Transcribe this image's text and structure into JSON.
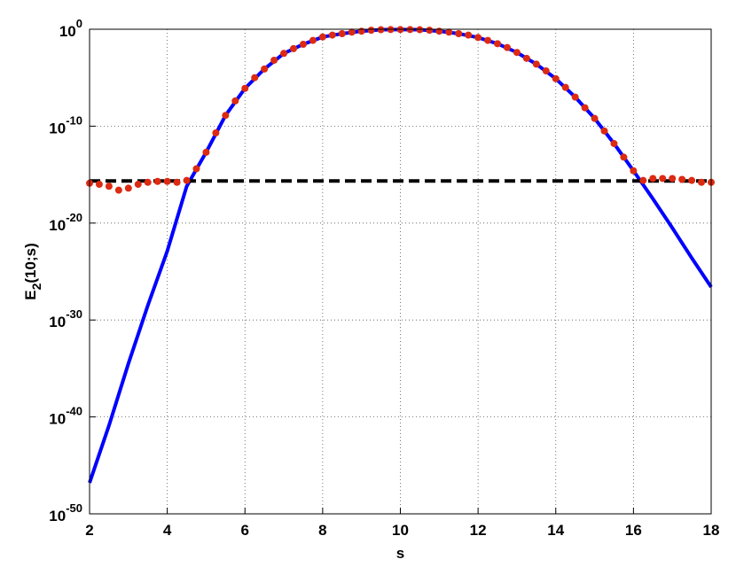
{
  "chart_data": {
    "type": "line",
    "xlabel": "s",
    "ylabel": "E_2(10;s)",
    "yscale": "log",
    "grid": true,
    "xlim": [
      2,
      18
    ],
    "xticks": [
      2,
      4,
      6,
      8,
      10,
      12,
      14,
      16,
      18
    ],
    "ylim": [
      1e-50,
      1
    ],
    "yticks": [
      {
        "value": 1e-50,
        "label": "10^-50"
      },
      {
        "value": 1e-40,
        "label": "10^-40"
      },
      {
        "value": 1e-30,
        "label": "10^-30"
      },
      {
        "value": 1e-20,
        "label": "10^-20"
      },
      {
        "value": 1e-10,
        "label": "10^-10"
      },
      {
        "value": 1,
        "label": "10^0"
      }
    ],
    "series": [
      {
        "style": "solid",
        "color": "#0000ff",
        "x": [
          2,
          2.5,
          3,
          3.5,
          4,
          4.5,
          5,
          5.5,
          6,
          6.5,
          7,
          7.5,
          8,
          8.5,
          9,
          9.5,
          10,
          10.5,
          11,
          11.5,
          12,
          12.5,
          13,
          13.5,
          14,
          14.5,
          15,
          15.5,
          16,
          16.5,
          17,
          17.5,
          18
        ],
        "values": [
          1.6e-47,
          1.3e-41,
          3.2e-35,
          3.2e-29,
          1.3e-23,
          6.3e-17,
          2e-13,
          1.3e-09,
          7.9e-07,
          7.9e-05,
          0.0032,
          0.028,
          0.16,
          0.35,
          0.63,
          0.89,
          0.93,
          0.89,
          0.63,
          0.35,
          0.14,
          0.032,
          0.004,
          0.00025,
          7.9e-06,
          1e-07,
          6.3e-10,
          1.6e-12,
          2.5e-15,
          3.2e-18,
          3.2e-21,
          2.5e-24,
          2.5e-27
        ]
      },
      {
        "style": "dashed",
        "color": "#000000",
        "x": [
          2,
          18
        ],
        "values": [
          2.2e-16,
          2.2e-16
        ]
      },
      {
        "style": "dots",
        "color": "#dd2a12",
        "x": [
          2,
          2.25,
          2.5,
          2.75,
          3,
          3.25,
          3.5,
          3.75,
          4,
          4.25,
          4.5,
          4.75,
          5,
          5.25,
          5.5,
          5.75,
          6,
          6.25,
          6.5,
          6.75,
          7,
          7.25,
          7.5,
          7.75,
          8,
          8.25,
          8.5,
          8.75,
          9,
          9.25,
          9.5,
          9.75,
          10,
          10.25,
          10.5,
          10.75,
          11,
          11.25,
          11.5,
          11.75,
          12,
          12.25,
          12.5,
          12.75,
          13,
          13.25,
          13.5,
          13.75,
          14,
          14.25,
          14.5,
          14.75,
          15,
          15.25,
          15.5,
          15.75,
          16,
          16.25,
          16.5,
          16.75,
          17,
          17.25,
          17.5,
          17.75,
          18
        ],
        "values": [
          1.3e-16,
          1e-16,
          6.3e-17,
          2.5e-17,
          4e-17,
          1e-16,
          1.6e-16,
          2e-16,
          2e-16,
          1.6e-16,
          2.5e-16,
          4e-15,
          2e-13,
          2e-11,
          1.3e-09,
          4e-08,
          7.9e-07,
          1e-05,
          7.9e-05,
          0.00063,
          0.0032,
          0.01,
          0.028,
          0.071,
          0.16,
          0.25,
          0.35,
          0.5,
          0.63,
          0.79,
          0.89,
          0.93,
          0.93,
          0.93,
          0.89,
          0.79,
          0.63,
          0.5,
          0.35,
          0.25,
          0.14,
          0.071,
          0.032,
          0.013,
          0.004,
          0.001,
          0.00025,
          5e-05,
          7.9e-06,
          1e-06,
          1e-07,
          7.9e-09,
          6.3e-10,
          3.2e-11,
          1.6e-12,
          6.3e-14,
          2.5e-15,
          2.5e-16,
          4e-16,
          4e-16,
          4e-16,
          3.2e-16,
          2.5e-16,
          1.6e-16,
          1.6e-16
        ]
      }
    ]
  }
}
